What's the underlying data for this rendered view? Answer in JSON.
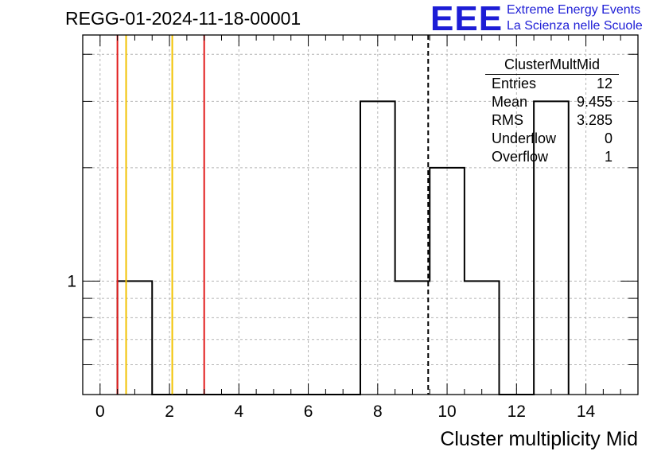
{
  "run_title": "REGG-01-2024-11-18-00001",
  "logo": {
    "mark": "EEE",
    "line1": "Extreme Energy Events",
    "line2": "La Scienza nelle Scuole",
    "color": "#1d1dd6"
  },
  "stats_box": {
    "title": "ClusterMultMid",
    "rows": [
      {
        "label": "Entries",
        "value": "12"
      },
      {
        "label": "Mean",
        "value": "9.455"
      },
      {
        "label": "RMS",
        "value": "3.285"
      },
      {
        "label": "Underflow",
        "value": "0"
      },
      {
        "label": "Overflow",
        "value": "1"
      }
    ]
  },
  "chart_data": {
    "type": "bar",
    "histogram": true,
    "title": "REGG-01-2024-11-18-00001",
    "xlabel": "Cluster multiplicity Mid",
    "ylabel": "",
    "xlim": [
      -0.5,
      15.5
    ],
    "ylim": [
      0.5,
      4.5
    ],
    "y_scale": "log",
    "grid": true,
    "bins": [
      {
        "x": 1,
        "value": 1
      },
      {
        "x": 8,
        "value": 3
      },
      {
        "x": 9,
        "value": 1
      },
      {
        "x": 10,
        "value": 2
      },
      {
        "x": 11,
        "value": 1
      },
      {
        "x": 13,
        "value": 3
      }
    ],
    "x_tick_labels": [
      "0",
      "2",
      "4",
      "6",
      "8",
      "10",
      "12",
      "14"
    ],
    "y_tick_labels": [
      "1"
    ],
    "vertical_lines": [
      {
        "x": 0.5,
        "color": "#e21b1b",
        "style": "solid"
      },
      {
        "x": 0.75,
        "color": "#f2c200",
        "style": "solid"
      },
      {
        "x": 2.08,
        "color": "#f2c200",
        "style": "solid"
      },
      {
        "x": 3.0,
        "color": "#e21b1b",
        "style": "solid"
      },
      {
        "x": 9.455,
        "color": "#000000",
        "style": "dashed"
      }
    ]
  }
}
